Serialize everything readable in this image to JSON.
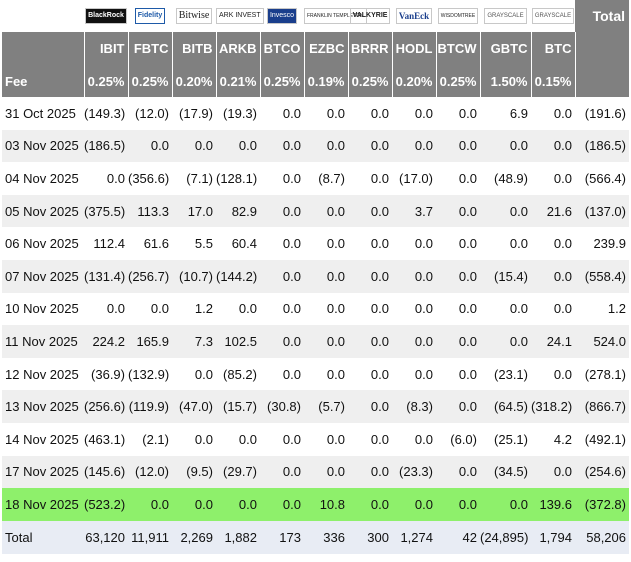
{
  "header": {
    "logos": [
      "BlackRock",
      "Fidelity",
      "Bitwise",
      "ARK INVEST",
      "Invesco",
      "FRANKLIN TEMPLETON",
      "VALKYRIE",
      "VanEck",
      "WISDOMTREE",
      "GRAYSCALE",
      "GRAYSCALE"
    ],
    "total_label": "Total",
    "tickers": [
      "IBIT",
      "FBTC",
      "BITB",
      "ARKB",
      "BTCO",
      "EZBC",
      "BRRR",
      "HODL",
      "BTCW",
      "GBTC",
      "BTC"
    ],
    "fee_label": "Fee",
    "fees": [
      "0.25%",
      "0.25%",
      "0.20%",
      "0.21%",
      "0.25%",
      "0.19%",
      "0.25%",
      "0.20%",
      "0.25%",
      "1.50%",
      "0.15%"
    ]
  },
  "rows": [
    {
      "date": "31 Oct 2025",
      "v": [
        "(149.3)",
        "(12.0)",
        "(17.9)",
        "(19.3)",
        "0.0",
        "0.0",
        "0.0",
        "0.0",
        "0.0",
        "6.9",
        "0.0",
        "(191.6)"
      ]
    },
    {
      "date": "03 Nov 2025",
      "v": [
        "(186.5)",
        "0.0",
        "0.0",
        "0.0",
        "0.0",
        "0.0",
        "0.0",
        "0.0",
        "0.0",
        "0.0",
        "0.0",
        "(186.5)"
      ]
    },
    {
      "date": "04 Nov 2025",
      "v": [
        "0.0",
        "(356.6)",
        "(7.1)",
        "(128.1)",
        "0.0",
        "(8.7)",
        "0.0",
        "(17.0)",
        "0.0",
        "(48.9)",
        "0.0",
        "(566.4)"
      ]
    },
    {
      "date": "05 Nov 2025",
      "v": [
        "(375.5)",
        "113.3",
        "17.0",
        "82.9",
        "0.0",
        "0.0",
        "0.0",
        "3.7",
        "0.0",
        "0.0",
        "21.6",
        "(137.0)"
      ]
    },
    {
      "date": "06 Nov 2025",
      "v": [
        "112.4",
        "61.6",
        "5.5",
        "60.4",
        "0.0",
        "0.0",
        "0.0",
        "0.0",
        "0.0",
        "0.0",
        "0.0",
        "239.9"
      ]
    },
    {
      "date": "07 Nov 2025",
      "v": [
        "(131.4)",
        "(256.7)",
        "(10.7)",
        "(144.2)",
        "0.0",
        "0.0",
        "0.0",
        "0.0",
        "0.0",
        "(15.4)",
        "0.0",
        "(558.4)"
      ]
    },
    {
      "date": "10 Nov 2025",
      "v": [
        "0.0",
        "0.0",
        "1.2",
        "0.0",
        "0.0",
        "0.0",
        "0.0",
        "0.0",
        "0.0",
        "0.0",
        "0.0",
        "1.2"
      ]
    },
    {
      "date": "11 Nov 2025",
      "v": [
        "224.2",
        "165.9",
        "7.3",
        "102.5",
        "0.0",
        "0.0",
        "0.0",
        "0.0",
        "0.0",
        "0.0",
        "24.1",
        "524.0"
      ]
    },
    {
      "date": "12 Nov 2025",
      "v": [
        "(36.9)",
        "(132.9)",
        "0.0",
        "(85.2)",
        "0.0",
        "0.0",
        "0.0",
        "0.0",
        "0.0",
        "(23.1)",
        "0.0",
        "(278.1)"
      ]
    },
    {
      "date": "13 Nov 2025",
      "v": [
        "(256.6)",
        "(119.9)",
        "(47.0)",
        "(15.7)",
        "(30.8)",
        "(5.7)",
        "0.0",
        "(8.3)",
        "0.0",
        "(64.5)",
        "(318.2)",
        "(866.7)"
      ]
    },
    {
      "date": "14 Nov 2025",
      "v": [
        "(463.1)",
        "(2.1)",
        "0.0",
        "0.0",
        "0.0",
        "0.0",
        "0.0",
        "0.0",
        "(6.0)",
        "(25.1)",
        "4.2",
        "(492.1)"
      ]
    },
    {
      "date": "17 Nov 2025",
      "v": [
        "(145.6)",
        "(12.0)",
        "(9.5)",
        "(29.7)",
        "0.0",
        "0.0",
        "0.0",
        "(23.3)",
        "0.0",
        "(34.5)",
        "0.0",
        "(254.6)"
      ]
    },
    {
      "date": "18 Nov 2025",
      "v": [
        "(523.2)",
        "0.0",
        "0.0",
        "0.0",
        "0.0",
        "10.8",
        "0.0",
        "0.0",
        "0.0",
        "0.0",
        "139.6",
        "(372.8)"
      ]
    }
  ],
  "totals": {
    "label": "Total",
    "v": [
      "63,120",
      "11,911",
      "2,269",
      "1,882",
      "173",
      "336",
      "300",
      "1,274",
      "42",
      "(24,895)",
      "1,794",
      "58,206"
    ]
  },
  "colors": {
    "header_bg": "#808080",
    "negative": "#e0201a",
    "highlight_row": "#8ef06b",
    "alt_row": "#efefef",
    "total_row": "#e8ecf4"
  }
}
